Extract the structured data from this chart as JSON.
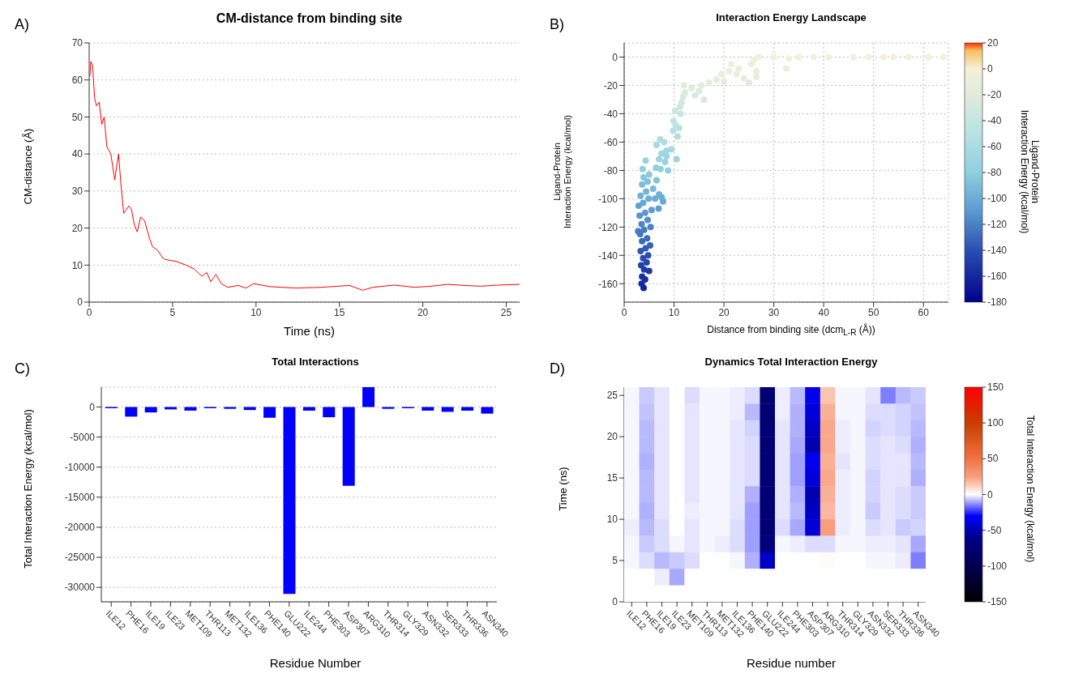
{
  "chart_data": [
    {
      "type": "line",
      "title": "CM-distance from binding site",
      "xlabel": "Time (ns)",
      "ylabel": "CM-distance (Å)",
      "annotations": [
        "A)"
      ],
      "grid": "y",
      "xlim": [
        0,
        25.8
      ],
      "xticks": [
        0,
        5,
        10,
        15,
        20,
        25
      ],
      "ylim": [
        0,
        70
      ],
      "yticks": [
        0,
        10,
        20,
        30,
        40,
        50,
        60,
        70
      ],
      "x": [
        0.04,
        0.1,
        0.2,
        0.33,
        0.44,
        0.6,
        0.75,
        0.9,
        1.06,
        1.3,
        1.53,
        1.76,
        1.92,
        2.07,
        2.38,
        2.54,
        2.7,
        2.88,
        3.08,
        3.32,
        3.63,
        3.79,
        4.1,
        4.4,
        4.57,
        5.2,
        5.8,
        6.28,
        6.75,
        7.05,
        7.29,
        7.6,
        7.91,
        8.3,
        8.93,
        9.4,
        9.86,
        10.8,
        12.4,
        13.9,
        15.6,
        16.4,
        17,
        18.3,
        19.5,
        20.5,
        21.5,
        22.5,
        23.5,
        24.5,
        25.8
      ],
      "series": [
        {
          "color": "#ff0000",
          "values": [
            61,
            65,
            64,
            55,
            53,
            54,
            48,
            50,
            42,
            40,
            33,
            40,
            31,
            24,
            26,
            25,
            21,
            19,
            23,
            22,
            17,
            15,
            14,
            12,
            11.5,
            11,
            10,
            9,
            7,
            8,
            5.5,
            7.5,
            5,
            4,
            4.5,
            3.8,
            5,
            4.2,
            3.8,
            4,
            4.5,
            3.2,
            4,
            4.6,
            4,
            4.3,
            4.8,
            4.5,
            4.3,
            4.6,
            4.8
          ]
        }
      ]
    },
    {
      "type": "scatter",
      "title": "Interaction Energy Landscape",
      "xlabel": "Distance from binding site (dcm$_{L-R}$ (Å))",
      "ylabel": "Ligand-Protein\nInteraction Energy (kcal/mol)",
      "clabel": "Ligand-Protein\nInteraction Energy (kcal/mol)",
      "annotations": [
        "B)"
      ],
      "grid": true,
      "xlim": [
        0,
        65
      ],
      "xticks": [
        0,
        10,
        20,
        30,
        40,
        50,
        60
      ],
      "ylim": [
        -173,
        10
      ],
      "yticks": [
        -160,
        -140,
        -120,
        -100,
        -80,
        -60,
        -40,
        -20,
        0
      ],
      "clim": [
        -180,
        20
      ],
      "cticks": [
        -180,
        -160,
        -140,
        -120,
        -100,
        -80,
        -60,
        -40,
        -20,
        0,
        20
      ],
      "x": [
        3.5,
        3.9,
        4.2,
        3.6,
        5,
        4,
        3.4,
        4.5,
        3.8,
        4.8,
        3.3,
        4.3,
        5.2,
        3.6,
        4.6,
        3.2,
        4,
        5.3,
        2.8,
        3.5,
        4.7,
        3.1,
        4.2,
        5.5,
        2.9,
        3.8,
        4.9,
        3.3,
        4.4,
        5.8,
        3.6,
        4.7,
        6.5,
        3.9,
        5,
        3.7,
        4.3,
        6.2,
        7,
        7.8,
        6.9,
        7.5,
        6.4,
        7.3,
        8.8,
        7,
        8.2,
        7.5,
        8.5,
        9.5,
        10.5,
        6.5,
        7.2,
        8,
        8.5,
        9.8,
        10.7,
        10.3,
        9.9,
        11,
        10.2,
        11.3,
        11.2,
        11.8,
        11.5,
        12.2,
        12,
        13.5,
        14.2,
        15,
        16,
        15.5,
        17,
        18.5,
        19.5,
        20,
        21,
        21.5,
        22.5,
        23,
        24,
        25,
        25.5,
        26.5,
        26.5,
        26,
        27,
        30,
        33,
        32.5,
        35,
        38,
        41,
        46,
        49,
        52,
        54,
        57,
        61,
        64
      ],
      "values": [
        -160,
        -163,
        -157,
        -155,
        -151,
        -150,
        -147,
        -145,
        -142,
        -140,
        -137,
        -135,
        -133,
        -130,
        -128,
        -125,
        -122,
        -120,
        -123,
        -118,
        -115,
        -112,
        -110,
        -108,
        -105,
        -103,
        -100,
        -98,
        -95,
        -93,
        -90,
        -88,
        -87,
        -85,
        -83,
        -79,
        -73,
        -100,
        -97,
        -102,
        -107,
        -99,
        -78,
        -79,
        -80,
        -72,
        -74,
        -68,
        -70,
        -65,
        -72,
        -62,
        -58,
        -60,
        -66,
        -52,
        -56,
        -48,
        -45,
        -50,
        -38,
        -40,
        -35,
        -28,
        -32,
        -25,
        -20,
        -22,
        -27,
        -24,
        -30,
        -20,
        -18,
        -16,
        -12,
        -17,
        -10,
        -5,
        -12,
        -8,
        -15,
        -18,
        -5,
        -10,
        -14,
        -2,
        0,
        0,
        -1,
        -8,
        0,
        0,
        0,
        0,
        0,
        0,
        0,
        0,
        0,
        0
      ],
      "cvalues": [
        -160,
        -163,
        -157,
        -155,
        -151,
        -150,
        -147,
        -145,
        -142,
        -140,
        -137,
        -135,
        -133,
        -130,
        -128,
        -125,
        -122,
        -120,
        -123,
        -118,
        -115,
        -112,
        -110,
        -108,
        -105,
        -103,
        -100,
        -98,
        -95,
        -93,
        -90,
        -88,
        -87,
        -85,
        -83,
        -79,
        -73,
        -100,
        -97,
        -102,
        -107,
        -99,
        -78,
        -79,
        -80,
        -72,
        -74,
        -68,
        -70,
        -65,
        -72,
        -62,
        -58,
        -60,
        -66,
        -52,
        -56,
        -48,
        -45,
        -50,
        -38,
        -40,
        -35,
        -28,
        -32,
        -25,
        -20,
        -22,
        -27,
        -24,
        -30,
        -20,
        -18,
        -16,
        -12,
        -17,
        -10,
        -5,
        -12,
        -8,
        -15,
        -18,
        -5,
        -10,
        -14,
        -2,
        0,
        0,
        -1,
        -8,
        0,
        0,
        0,
        0,
        0,
        0,
        0,
        0,
        0,
        0
      ]
    },
    {
      "type": "bar",
      "title": "Total Interactions",
      "xlabel": "Residue Number",
      "ylabel": "Total Interaction Energy (kcal/mol)",
      "annotations": [
        "C)"
      ],
      "grid": "y",
      "ylim": [
        -32400,
        3300
      ],
      "yticks": [
        -30000,
        -25000,
        -20000,
        -15000,
        -10000,
        -5000,
        0
      ],
      "categories": [
        "ILE12",
        "PHE16",
        "ILE19",
        "ILE23",
        "MET109",
        "THR113",
        "MET132",
        "ILE136",
        "PHE140",
        "GLU222",
        "ILE244",
        "PHE303",
        "ASP307",
        "ARG310",
        "THR314",
        "GLY329",
        "ASN332",
        "SER333",
        "THR336",
        "ASN340"
      ],
      "series": [
        {
          "color": "#0000ff",
          "values": [
            -200,
            -1600,
            -900,
            -400,
            -600,
            -200,
            -300,
            -500,
            -1800,
            -31100,
            -600,
            -1700,
            -13100,
            3300,
            -300,
            -200,
            -600,
            -800,
            -600,
            -1100
          ]
        }
      ]
    },
    {
      "type": "heatmap",
      "title": "Dynamics Total Interaction Energy",
      "xlabel": "Residue number",
      "ylabel": "Time (ns)",
      "clabel": "Total Interaction Energy (kcal/mol)",
      "annotations": [
        "D)"
      ],
      "ylim": [
        0,
        26
      ],
      "yticks": [
        0,
        5,
        10,
        15,
        20,
        25
      ],
      "clim": [
        -150,
        150
      ],
      "cticks": [
        -150,
        -100,
        -50,
        0,
        50,
        100,
        150
      ],
      "categories": [
        "ILE12",
        "PHE16",
        "ILE19",
        "ILE23",
        "MET109",
        "THR113",
        "MET132",
        "ILE136",
        "PHE140",
        "GLU222",
        "ILE244",
        "PHE303",
        "ASP307",
        "ARG310",
        "THR314",
        "GLY329",
        "ASN332",
        "SER333",
        "THR336",
        "ASN340"
      ],
      "cells": [
        [
          -1,
          -6,
          -3,
          0,
          -4,
          -1,
          -1,
          -2,
          -4,
          -75,
          -2,
          -8,
          -35,
          15,
          -1,
          -1,
          -3,
          -15,
          -8,
          -6
        ],
        [
          -1,
          -7,
          -3,
          0,
          -3,
          -1,
          -1,
          -2,
          -8,
          -75,
          -2,
          -9,
          -40,
          20,
          -1,
          -1,
          -4,
          -4,
          -5,
          -7
        ],
        [
          -1,
          -8,
          -3,
          0,
          -3,
          -1,
          -1,
          -3,
          -5,
          -75,
          -3,
          -9,
          -45,
          22,
          -2,
          -1,
          -5,
          -4,
          -5,
          -8
        ],
        [
          -1,
          -8,
          -3,
          0,
          -3,
          -1,
          -1,
          -3,
          -4,
          -75,
          -3,
          -10,
          -50,
          22,
          -2,
          -1,
          -4,
          -3,
          -4,
          -9
        ],
        [
          -1,
          -9,
          -3,
          0,
          -3,
          -1,
          -1,
          -3,
          -4,
          -75,
          -3,
          -11,
          -35,
          20,
          -3,
          -1,
          -4,
          -3,
          -3,
          -8
        ],
        [
          -1,
          -8,
          -3,
          0,
          -3,
          -1,
          -1,
          -3,
          -4,
          -75,
          -3,
          -11,
          -40,
          22,
          -2,
          -1,
          -5,
          -3,
          -3,
          -9
        ],
        [
          -1,
          -8,
          -3,
          0,
          -3,
          -1,
          -1,
          -3,
          -9,
          -75,
          -3,
          -9,
          -50,
          20,
          -2,
          -1,
          -5,
          -3,
          -4,
          -6
        ],
        [
          -1,
          -9,
          -3,
          0,
          -2,
          -1,
          -1,
          -3,
          -11,
          -75,
          -3,
          -8,
          -45,
          18,
          -2,
          -1,
          -6,
          -3,
          -4,
          -6
        ],
        [
          -2,
          -8,
          -4,
          0,
          -3,
          -1,
          -1,
          -4,
          -11,
          -75,
          -4,
          -10,
          -40,
          25,
          -2,
          -1,
          -4,
          -3,
          -6,
          -5
        ],
        [
          -1,
          -6,
          -4,
          -1,
          -3,
          -1,
          -2,
          -4,
          -11,
          -70,
          -1,
          -2,
          -4,
          -4,
          -1,
          -1,
          -2,
          -2,
          -3,
          -10
        ],
        [
          -1,
          -4,
          -8,
          -6,
          -4,
          0,
          0,
          -1,
          -9,
          -45,
          0,
          0,
          0,
          1,
          0,
          0,
          -1,
          -1,
          -2,
          -15
        ],
        [
          0,
          0,
          -2,
          -10,
          0,
          0,
          0,
          0,
          0,
          0,
          0,
          0,
          0,
          0,
          0,
          0,
          0,
          0,
          0,
          0
        ],
        [
          0,
          0,
          0,
          0,
          0,
          0,
          0,
          0,
          0,
          0,
          0,
          0,
          0,
          0,
          0,
          0,
          0,
          0,
          0,
          0
        ]
      ]
    }
  ]
}
